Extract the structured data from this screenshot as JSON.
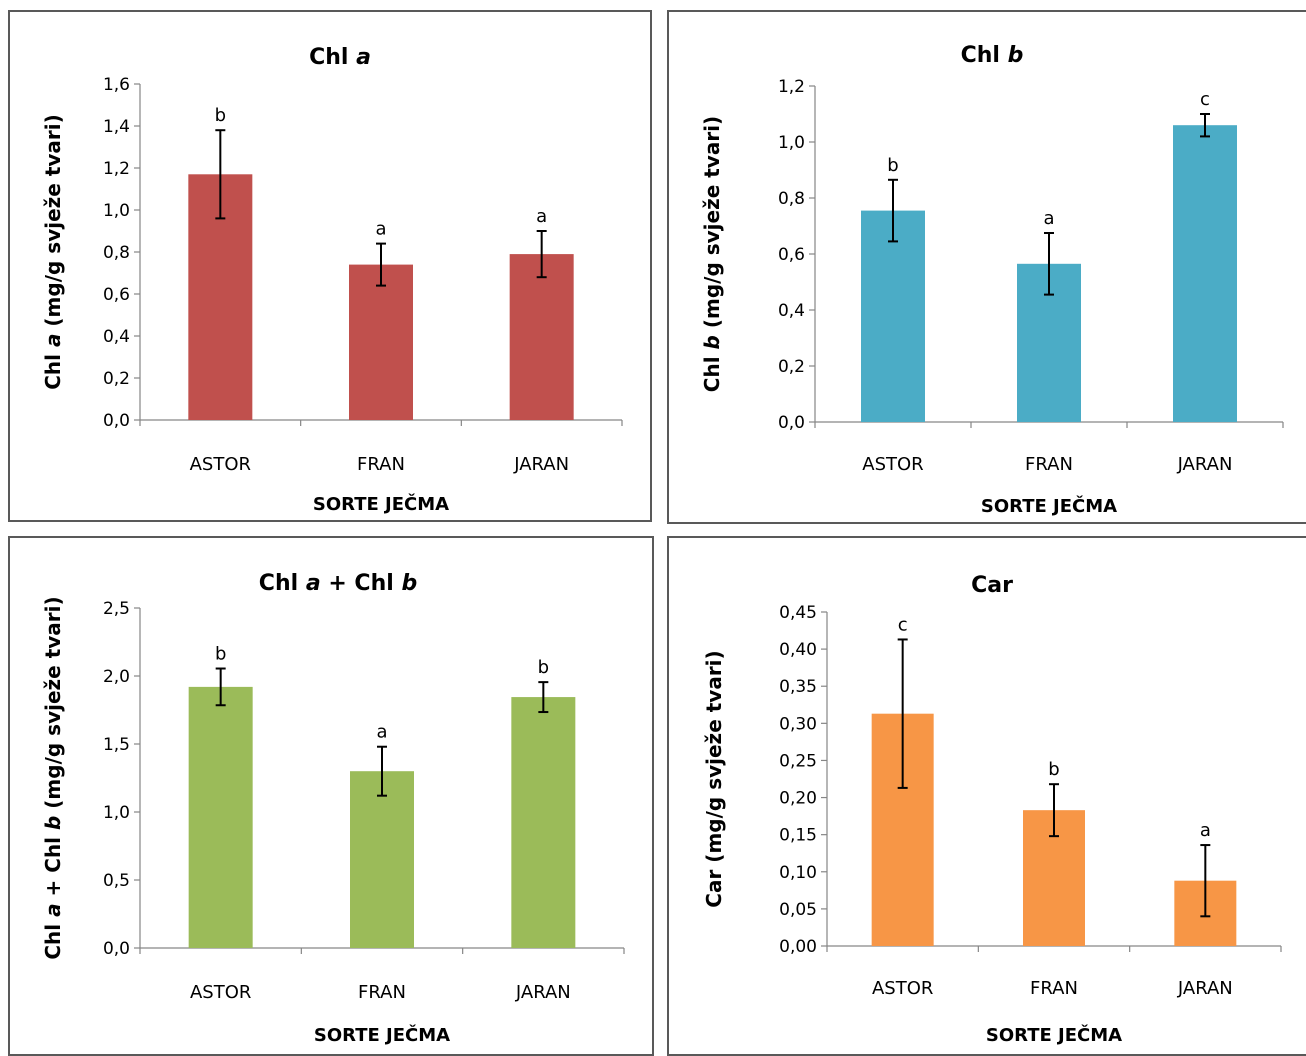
{
  "chart_data": [
    {
      "type": "bar",
      "title_parts": [
        {
          "t": "Chl ",
          "i": false
        },
        {
          "t": "a",
          "i": true
        }
      ],
      "ylabel_parts": [
        {
          "t": "Chl ",
          "i": false
        },
        {
          "t": "a",
          "i": true
        },
        {
          "t": " (mg/g svježe tvari)",
          "i": false
        }
      ],
      "xlabel": "SORTE JEČMA",
      "categories": [
        "ASTOR",
        "FRAN",
        "JARAN"
      ],
      "values": [
        1.17,
        0.74,
        0.79
      ],
      "errors": [
        0.21,
        0.1,
        0.11
      ],
      "letters": [
        "b",
        "a",
        "a"
      ],
      "ylim": [
        0,
        1.6
      ],
      "yticks": [
        "0,0",
        "0,2",
        "0,4",
        "0,6",
        "0,8",
        "1,0",
        "1,2",
        "1,4",
        "1,6"
      ],
      "color": "#C0504D"
    },
    {
      "type": "bar",
      "title_parts": [
        {
          "t": "Chl ",
          "i": false
        },
        {
          "t": "b",
          "i": true
        }
      ],
      "ylabel_parts": [
        {
          "t": "Chl ",
          "i": false
        },
        {
          "t": "b",
          "i": true
        },
        {
          "t": " (mg/g svježe tvari)",
          "i": false
        }
      ],
      "xlabel": "SORTE JEČMA",
      "categories": [
        "ASTOR",
        "FRAN",
        "JARAN"
      ],
      "values": [
        0.755,
        0.565,
        1.06
      ],
      "errors": [
        0.11,
        0.11,
        0.04
      ],
      "letters": [
        "b",
        "a",
        "c"
      ],
      "ylim": [
        0,
        1.2
      ],
      "yticks": [
        "0,0",
        "0,2",
        "0,4",
        "0,6",
        "0,8",
        "1,0",
        "1,2"
      ],
      "color": "#4BACC6"
    },
    {
      "type": "bar",
      "title_parts": [
        {
          "t": "Chl ",
          "i": false
        },
        {
          "t": "a",
          "i": true
        },
        {
          "t": " + Chl ",
          "i": false
        },
        {
          "t": "b",
          "i": true
        }
      ],
      "ylabel_parts": [
        {
          "t": "Chl ",
          "i": false
        },
        {
          "t": "a",
          "i": true
        },
        {
          "t": " + Chl ",
          "i": false
        },
        {
          "t": "b",
          "i": true
        },
        {
          "t": " (mg/g svježe tvari)",
          "i": false
        }
      ],
      "xlabel": "SORTE JEČMA",
      "categories": [
        "ASTOR",
        "FRAN",
        "JARAN"
      ],
      "values": [
        1.92,
        1.3,
        1.845
      ],
      "errors": [
        0.135,
        0.18,
        0.11
      ],
      "letters": [
        "b",
        "a",
        "b"
      ],
      "ylim": [
        0,
        2.5
      ],
      "yticks": [
        "0,0",
        "0,5",
        "1,0",
        "1,5",
        "2,0",
        "2,5"
      ],
      "color": "#9BBB59"
    },
    {
      "type": "bar",
      "title_parts": [
        {
          "t": "Car",
          "i": false
        }
      ],
      "ylabel_parts": [
        {
          "t": "Car (mg/g svježe tvari)",
          "i": false
        }
      ],
      "xlabel": "SORTE JEČMA",
      "categories": [
        "ASTOR",
        "FRAN",
        "JARAN"
      ],
      "values": [
        0.313,
        0.183,
        0.088
      ],
      "errors": [
        0.1,
        0.035,
        0.048
      ],
      "letters": [
        "c",
        "b",
        "a"
      ],
      "ylim": [
        0,
        0.45
      ],
      "yticks": [
        "0,00",
        "0,05",
        "0,10",
        "0,15",
        "0,20",
        "0,25",
        "0,30",
        "0,35",
        "0,40",
        "0,45"
      ],
      "color": "#F79646"
    }
  ]
}
